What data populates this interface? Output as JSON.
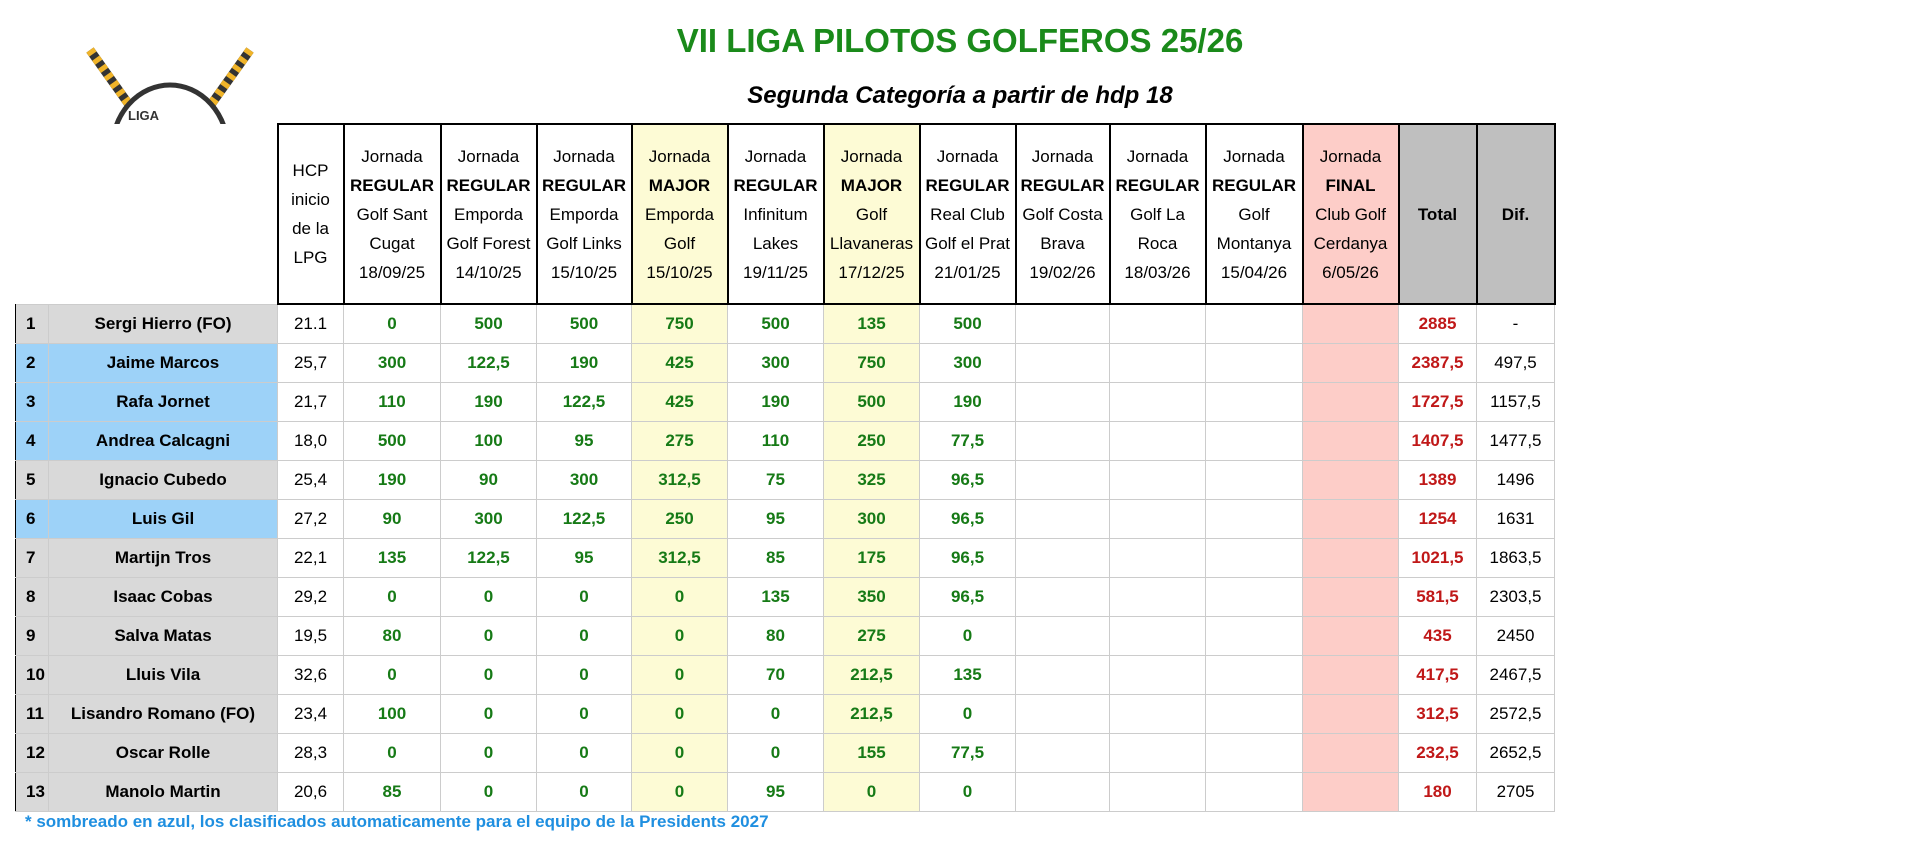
{
  "title": "VII LIGA PILOTOS GOLFEROS 25/26",
  "subtitle": "Segunda Categoría a partir de hdp 18",
  "logo_text": "LIGA PILOTOS GOLFEROS",
  "hcp_header": [
    "HCP",
    "inicio",
    "de la",
    "LPG"
  ],
  "jornadas": [
    {
      "l1": "Jornada",
      "type": "REGULAR",
      "l3": "Golf Sant",
      "l4": "Cugat",
      "date": "18/09/25",
      "kind": "regular"
    },
    {
      "l1": "Jornada",
      "type": "REGULAR",
      "l3": "Emporda",
      "l4": "Golf Forest",
      "date": "14/10/25",
      "kind": "regular"
    },
    {
      "l1": "Jornada",
      "type": "REGULAR",
      "l3": "Emporda",
      "l4": "Golf Links",
      "date": "15/10/25",
      "kind": "regular"
    },
    {
      "l1": "Jornada",
      "type": "MAJOR",
      "l3": "Emporda",
      "l4": "Golf",
      "date": "15/10/25",
      "kind": "major"
    },
    {
      "l1": "Jornada",
      "type": "REGULAR",
      "l3": "Infinitum",
      "l4": "Lakes",
      "date": "19/11/25",
      "kind": "regular"
    },
    {
      "l1": "Jornada",
      "type": "MAJOR",
      "l3": "Golf",
      "l4": "Llavaneras",
      "date": "17/12/25",
      "kind": "major"
    },
    {
      "l1": "Jornada",
      "type": "REGULAR",
      "l3": "Real Club",
      "l4": "Golf el Prat",
      "date": "21/01/25",
      "kind": "regular"
    },
    {
      "l1": "Jornada",
      "type": "REGULAR",
      "l3": "Golf Costa",
      "l4": "Brava",
      "date": "19/02/26",
      "kind": "regular"
    },
    {
      "l1": "Jornada",
      "type": "REGULAR",
      "l3": "Golf La",
      "l4": "Roca",
      "date": "18/03/26",
      "kind": "regular"
    },
    {
      "l1": "Jornada",
      "type": "REGULAR",
      "l3": "Golf",
      "l4": "Montanya",
      "date": "15/04/26",
      "kind": "regular"
    },
    {
      "l1": "Jornada",
      "type": "FINAL",
      "l3": "Club Golf",
      "l4": "Cerdanya",
      "date": "6/05/26",
      "kind": "final"
    }
  ],
  "total_header": "Total",
  "dif_header": "Dif.",
  "rows": [
    {
      "rank": "1",
      "name": "Sergi Hierro (FO)",
      "hcp": "21.1",
      "q": false,
      "pts": [
        "0",
        "500",
        "500",
        "750",
        "500",
        "135",
        "500",
        "",
        "",
        "",
        ""
      ],
      "total": "2885",
      "dif": "-"
    },
    {
      "rank": "2",
      "name": "Jaime Marcos",
      "hcp": "25,7",
      "q": true,
      "pts": [
        "300",
        "122,5",
        "190",
        "425",
        "300",
        "750",
        "300",
        "",
        "",
        "",
        ""
      ],
      "total": "2387,5",
      "dif": "497,5"
    },
    {
      "rank": "3",
      "name": "Rafa Jornet",
      "hcp": "21,7",
      "q": true,
      "pts": [
        "110",
        "190",
        "122,5",
        "425",
        "190",
        "500",
        "190",
        "",
        "",
        "",
        ""
      ],
      "total": "1727,5",
      "dif": "1157,5"
    },
    {
      "rank": "4",
      "name": "Andrea Calcagni",
      "hcp": "18,0",
      "q": true,
      "pts": [
        "500",
        "100",
        "95",
        "275",
        "110",
        "250",
        "77,5",
        "",
        "",
        "",
        ""
      ],
      "total": "1407,5",
      "dif": "1477,5"
    },
    {
      "rank": "5",
      "name": "Ignacio Cubedo",
      "hcp": "25,4",
      "q": false,
      "pts": [
        "190",
        "90",
        "300",
        "312,5",
        "75",
        "325",
        "96,5",
        "",
        "",
        "",
        ""
      ],
      "total": "1389",
      "dif": "1496"
    },
    {
      "rank": "6",
      "name": "Luis Gil",
      "hcp": "27,2",
      "q": true,
      "pts": [
        "90",
        "300",
        "122,5",
        "250",
        "95",
        "300",
        "96,5",
        "",
        "",
        "",
        ""
      ],
      "total": "1254",
      "dif": "1631"
    },
    {
      "rank": "7",
      "name": "Martijn Tros",
      "hcp": "22,1",
      "q": false,
      "pts": [
        "135",
        "122,5",
        "95",
        "312,5",
        "85",
        "175",
        "96,5",
        "",
        "",
        "",
        ""
      ],
      "total": "1021,5",
      "dif": "1863,5"
    },
    {
      "rank": "8",
      "name": "Isaac Cobas",
      "hcp": "29,2",
      "q": false,
      "pts": [
        "0",
        "0",
        "0",
        "0",
        "135",
        "350",
        "96,5",
        "",
        "",
        "",
        ""
      ],
      "total": "581,5",
      "dif": "2303,5"
    },
    {
      "rank": "9",
      "name": "Salva Matas",
      "hcp": "19,5",
      "q": false,
      "pts": [
        "80",
        "0",
        "0",
        "0",
        "80",
        "275",
        "0",
        "",
        "",
        "",
        ""
      ],
      "total": "435",
      "dif": "2450"
    },
    {
      "rank": "10",
      "name": "Lluis Vila",
      "hcp": "32,6",
      "q": false,
      "pts": [
        "0",
        "0",
        "0",
        "0",
        "70",
        "212,5",
        "135",
        "",
        "",
        "",
        ""
      ],
      "total": "417,5",
      "dif": "2467,5"
    },
    {
      "rank": "11",
      "name": "Lisandro Romano (FO)",
      "hcp": "23,4",
      "q": false,
      "pts": [
        "100",
        "0",
        "0",
        "0",
        "0",
        "212,5",
        "0",
        "",
        "",
        "",
        ""
      ],
      "total": "312,5",
      "dif": "2572,5"
    },
    {
      "rank": "12",
      "name": "Oscar Rolle",
      "hcp": "28,3",
      "q": false,
      "pts": [
        "0",
        "0",
        "0",
        "0",
        "0",
        "155",
        "77,5",
        "",
        "",
        "",
        ""
      ],
      "total": "232,5",
      "dif": "2652,5"
    },
    {
      "rank": "13",
      "name": "Manolo Martin",
      "hcp": "20,6",
      "q": false,
      "pts": [
        "85",
        "0",
        "0",
        "0",
        "95",
        "0",
        "0",
        "",
        "",
        "",
        ""
      ],
      "total": "180",
      "dif": "2705"
    }
  ],
  "footnote": "* sombreado en azul, los clasificados automaticamente para el equipo de la Presidents 2027"
}
